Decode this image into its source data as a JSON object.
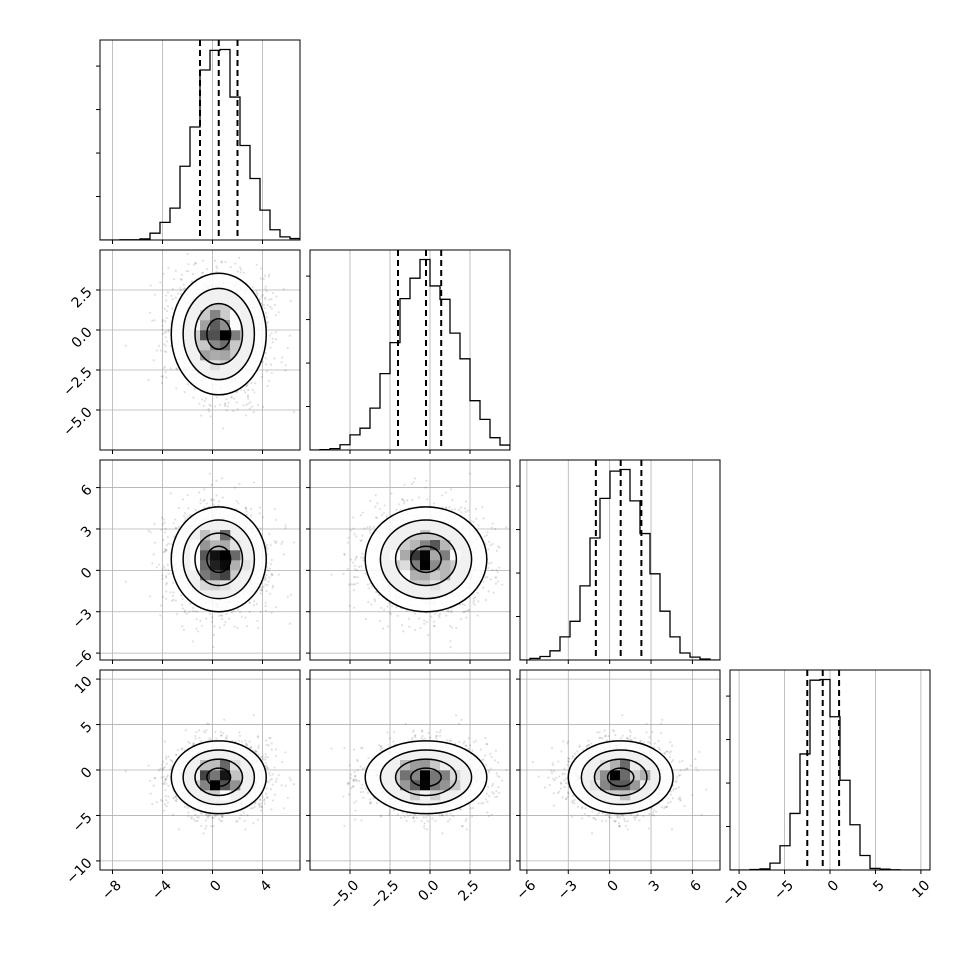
{
  "chart_data": {
    "type": "corner",
    "n_params": 4,
    "parameters": [
      {
        "name": "",
        "mean": 0.5,
        "sd": 1.9,
        "xlim": [
          -9,
          7
        ],
        "ticks": [
          -8,
          -4,
          0,
          4
        ],
        "tick_labels": [
          "−8",
          "−4",
          "0",
          "4"
        ],
        "quantiles": [
          -1.0,
          0.5,
          2.0
        ]
      },
      {
        "name": "",
        "mean": -0.25,
        "sd": 1.9,
        "xlim": [
          -7.5,
          5
        ],
        "ticks": [
          -5.0,
          -2.5,
          0.0,
          2.5
        ],
        "tick_labels": [
          "−5.0",
          "−2.5",
          "0.0",
          "2.5"
        ],
        "quantiles": [
          -2.0,
          -0.25,
          0.7
        ]
      },
      {
        "name": "",
        "mean": 0.8,
        "sd": 1.9,
        "xlim": [
          -6.5,
          8
        ],
        "ticks": [
          -6,
          -3,
          0,
          3,
          6
        ],
        "tick_labels": [
          "−6",
          "−3",
          "0",
          "3",
          "6"
        ],
        "quantiles": [
          -1.0,
          0.8,
          2.3
        ]
      },
      {
        "name": "",
        "mean": -0.8,
        "sd": 2.0,
        "xlim": [
          -11,
          11
        ],
        "ticks": [
          -10,
          -5,
          0,
          5,
          10
        ],
        "tick_labels": [
          "−10",
          "−5",
          "0",
          "5",
          "10"
        ],
        "quantiles": [
          -2.5,
          -0.8,
          1.0
        ]
      }
    ],
    "histogram_bins": 20,
    "contour_levels_sigma": [
      0.5,
      1.0,
      1.5,
      2.0
    ],
    "scatter_color": "#000000",
    "grid": true,
    "legend": "none"
  }
}
